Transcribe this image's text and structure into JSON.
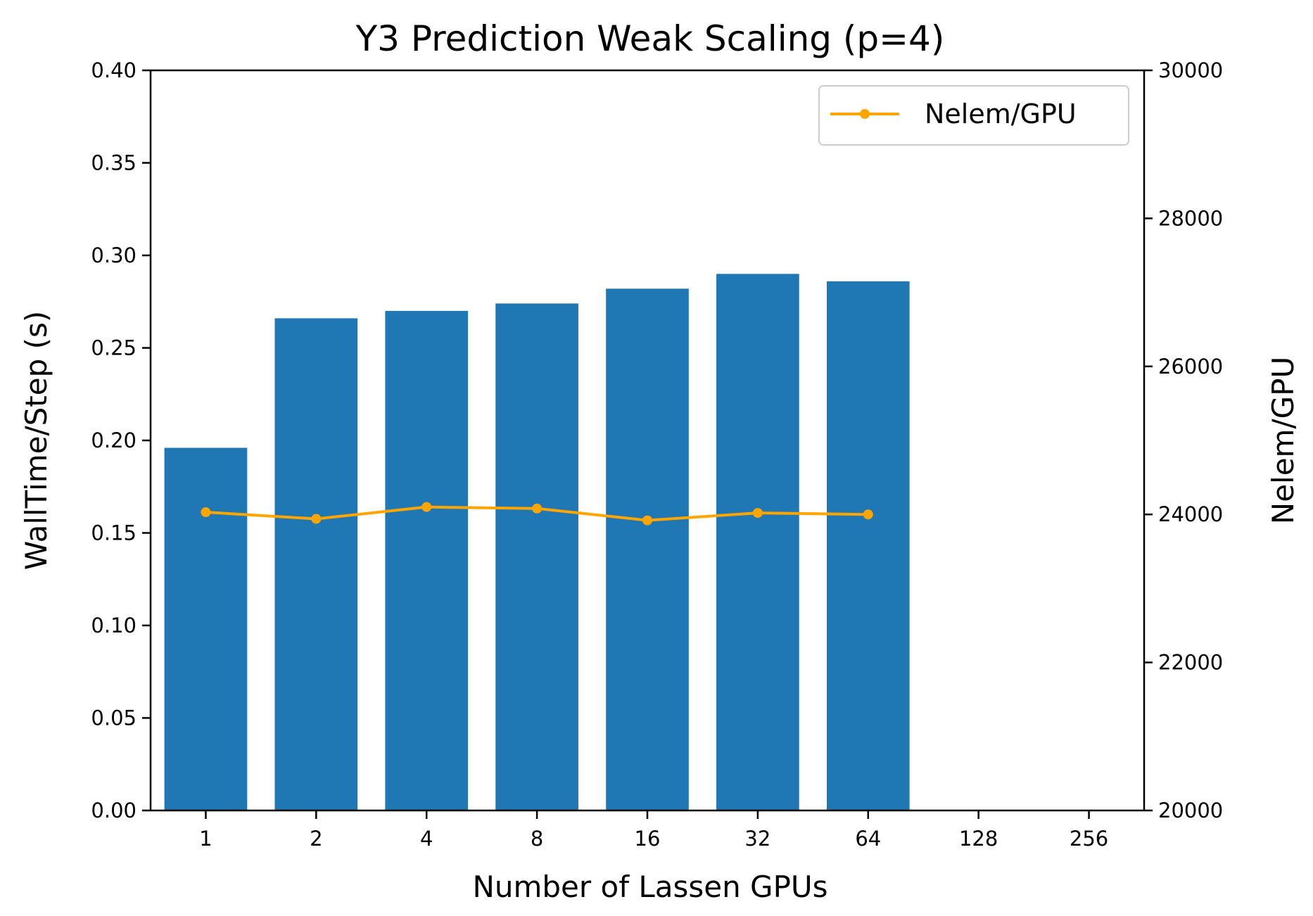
{
  "chart_data": {
    "type": "bar",
    "title": "Y3 Prediction Weak Scaling (p=4)",
    "xlabel": "Number of Lassen GPUs",
    "ylabel": "WallTime/Step (s)",
    "y2label": "Nelem/GPU",
    "x_tick_labels": [
      "1",
      "2",
      "4",
      "8",
      "16",
      "32",
      "64",
      "128",
      "256"
    ],
    "categories": [
      "1",
      "2",
      "4",
      "8",
      "16",
      "32",
      "64"
    ],
    "ylim": [
      0,
      0.4
    ],
    "y_ticks": [
      "0.00",
      "0.05",
      "0.10",
      "0.15",
      "0.20",
      "0.25",
      "0.30",
      "0.35",
      "0.40"
    ],
    "y2lim": [
      20000,
      30000
    ],
    "y2_ticks": [
      "20000",
      "22000",
      "24000",
      "26000",
      "28000",
      "30000"
    ],
    "series": [
      {
        "kind": "bar",
        "axis": "left",
        "color": "#1f77b4",
        "values": [
          0.196,
          0.266,
          0.27,
          0.274,
          0.282,
          0.29,
          0.286
        ]
      },
      {
        "kind": "line",
        "axis": "right",
        "name": "Nelem/GPU",
        "color": "#ffa500",
        "values": [
          24030,
          23940,
          24100,
          24080,
          23920,
          24020,
          24000
        ]
      }
    ],
    "legend": {
      "position": "top-right",
      "entries": [
        "Nelem/GPU"
      ]
    },
    "grid": false
  }
}
